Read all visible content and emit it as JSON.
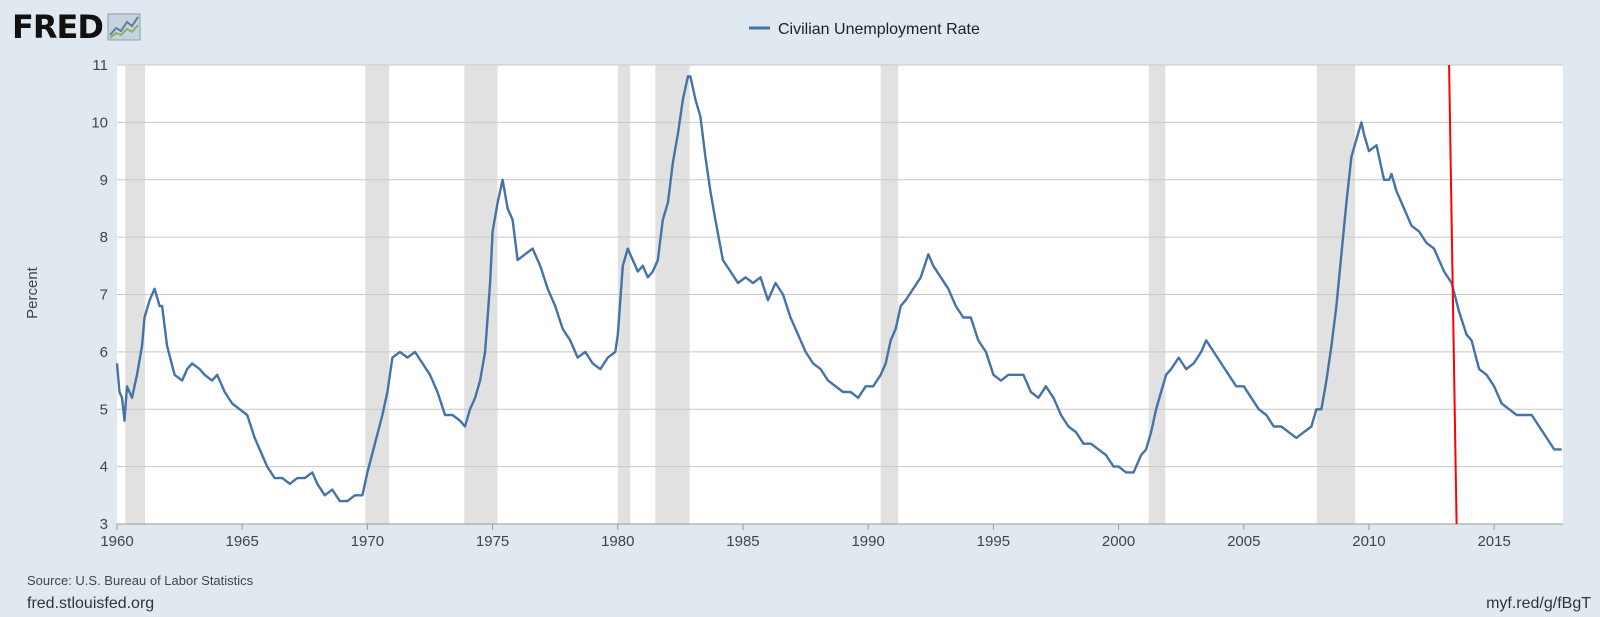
{
  "header": {
    "logo_text": "FRED",
    "logo_icon": "fred-chart-icon"
  },
  "footer": {
    "source": "Source: U.S. Bureau of Labor Statistics",
    "site": "fred.stlouisfed.org",
    "short_url": "myf.red/g/fBgT"
  },
  "colors": {
    "series": "#4572a7",
    "recession": "#e1e1e1",
    "annotation": "#ff0000",
    "background": "#e1e9f0",
    "plot": "#ffffff",
    "grid": "#c8c8c8"
  },
  "chart_data": {
    "type": "line",
    "title": "",
    "xlabel": "",
    "ylabel": "Percent",
    "xlim": [
      1960.0,
      2017.75
    ],
    "ylim": [
      3,
      11
    ],
    "yticks": [
      3,
      4,
      5,
      6,
      7,
      8,
      9,
      10,
      11
    ],
    "xticks": [
      1960,
      1965,
      1970,
      1975,
      1980,
      1985,
      1990,
      1995,
      2000,
      2005,
      2010,
      2015
    ],
    "grid": "horizontal",
    "legend": "top-center",
    "series": [
      {
        "name": "Civilian Unemployment Rate",
        "x": [
          1960.0,
          1960.1,
          1960.2,
          1960.3,
          1960.4,
          1960.6,
          1960.8,
          1961.0,
          1961.1,
          1961.3,
          1961.5,
          1961.7,
          1961.8,
          1962.0,
          1962.3,
          1962.6,
          1962.8,
          1963.0,
          1963.3,
          1963.5,
          1963.8,
          1964.0,
          1964.3,
          1964.6,
          1964.9,
          1965.2,
          1965.5,
          1965.8,
          1966.0,
          1966.3,
          1966.6,
          1966.9,
          1967.2,
          1967.5,
          1967.8,
          1968.0,
          1968.3,
          1968.6,
          1968.9,
          1969.2,
          1969.5,
          1969.8,
          1970.0,
          1970.3,
          1970.6,
          1970.8,
          1971.0,
          1971.3,
          1971.6,
          1971.9,
          1972.2,
          1972.5,
          1972.8,
          1973.1,
          1973.4,
          1973.7,
          1973.9,
          1974.1,
          1974.3,
          1974.5,
          1974.7,
          1974.9,
          1975.0,
          1975.2,
          1975.4,
          1975.6,
          1975.8,
          1976.0,
          1976.3,
          1976.6,
          1976.9,
          1977.2,
          1977.5,
          1977.8,
          1978.1,
          1978.4,
          1978.7,
          1979.0,
          1979.3,
          1979.6,
          1979.9,
          1980.0,
          1980.2,
          1980.4,
          1980.6,
          1980.8,
          1981.0,
          1981.2,
          1981.4,
          1981.6,
          1981.8,
          1982.0,
          1982.2,
          1982.4,
          1982.6,
          1982.8,
          1982.9,
          1983.1,
          1983.3,
          1983.5,
          1983.7,
          1983.9,
          1984.2,
          1984.5,
          1984.8,
          1985.1,
          1985.4,
          1985.7,
          1986.0,
          1986.3,
          1986.6,
          1986.9,
          1987.2,
          1987.5,
          1987.8,
          1988.1,
          1988.4,
          1988.7,
          1989.0,
          1989.3,
          1989.6,
          1989.9,
          1990.2,
          1990.5,
          1990.7,
          1990.9,
          1991.1,
          1991.3,
          1991.5,
          1991.8,
          1992.1,
          1992.4,
          1992.6,
          1992.9,
          1993.2,
          1993.5,
          1993.8,
          1994.1,
          1994.4,
          1994.7,
          1995.0,
          1995.3,
          1995.6,
          1995.9,
          1996.2,
          1996.5,
          1996.8,
          1997.1,
          1997.4,
          1997.7,
          1998.0,
          1998.3,
          1998.6,
          1998.9,
          1999.2,
          1999.5,
          1999.8,
          2000.0,
          2000.3,
          2000.6,
          2000.9,
          2001.1,
          2001.3,
          2001.5,
          2001.7,
          2001.9,
          2002.1,
          2002.4,
          2002.7,
          2003.0,
          2003.3,
          2003.5,
          2003.8,
          2004.1,
          2004.4,
          2004.7,
          2005.0,
          2005.3,
          2005.6,
          2005.9,
          2006.2,
          2006.5,
          2006.8,
          2007.1,
          2007.4,
          2007.7,
          2007.9,
          2008.1,
          2008.3,
          2008.5,
          2008.7,
          2008.9,
          2009.1,
          2009.3,
          2009.5,
          2009.7,
          2009.8,
          2010.0,
          2010.3,
          2010.6,
          2010.8,
          2010.9,
          2011.1,
          2011.4,
          2011.7,
          2012.0,
          2012.3,
          2012.6,
          2012.9,
          2013.0,
          2013.3,
          2013.6,
          2013.9,
          2014.1,
          2014.4,
          2014.7,
          2015.0,
          2015.3,
          2015.6,
          2015.9,
          2016.2,
          2016.5,
          2016.8,
          2017.1,
          2017.4,
          2017.7
        ],
        "values": [
          5.8,
          5.3,
          5.2,
          4.8,
          5.4,
          5.2,
          5.6,
          6.1,
          6.6,
          6.9,
          7.1,
          6.8,
          6.8,
          6.1,
          5.6,
          5.5,
          5.7,
          5.8,
          5.7,
          5.6,
          5.5,
          5.6,
          5.3,
          5.1,
          5.0,
          4.9,
          4.5,
          4.2,
          4.0,
          3.8,
          3.8,
          3.7,
          3.8,
          3.8,
          3.9,
          3.7,
          3.5,
          3.6,
          3.4,
          3.4,
          3.5,
          3.5,
          3.9,
          4.4,
          4.9,
          5.3,
          5.9,
          6.0,
          5.9,
          6.0,
          5.8,
          5.6,
          5.3,
          4.9,
          4.9,
          4.8,
          4.7,
          5.0,
          5.2,
          5.5,
          6.0,
          7.2,
          8.1,
          8.6,
          9.0,
          8.5,
          8.3,
          7.6,
          7.7,
          7.8,
          7.5,
          7.1,
          6.8,
          6.4,
          6.2,
          5.9,
          6.0,
          5.8,
          5.7,
          5.9,
          6.0,
          6.3,
          7.5,
          7.8,
          7.6,
          7.4,
          7.5,
          7.3,
          7.4,
          7.6,
          8.3,
          8.6,
          9.3,
          9.8,
          10.4,
          10.8,
          10.8,
          10.4,
          10.1,
          9.4,
          8.8,
          8.3,
          7.6,
          7.4,
          7.2,
          7.3,
          7.2,
          7.3,
          6.9,
          7.2,
          7.0,
          6.6,
          6.3,
          6.0,
          5.8,
          5.7,
          5.5,
          5.4,
          5.3,
          5.3,
          5.2,
          5.4,
          5.4,
          5.6,
          5.8,
          6.2,
          6.4,
          6.8,
          6.9,
          7.1,
          7.3,
          7.7,
          7.5,
          7.3,
          7.1,
          6.8,
          6.6,
          6.6,
          6.2,
          6.0,
          5.6,
          5.5,
          5.6,
          5.6,
          5.6,
          5.3,
          5.2,
          5.4,
          5.2,
          4.9,
          4.7,
          4.6,
          4.4,
          4.4,
          4.3,
          4.2,
          4.0,
          4.0,
          3.9,
          3.9,
          4.2,
          4.3,
          4.6,
          5.0,
          5.3,
          5.6,
          5.7,
          5.9,
          5.7,
          5.8,
          6.0,
          6.2,
          6.0,
          5.8,
          5.6,
          5.4,
          5.4,
          5.2,
          5.0,
          4.9,
          4.7,
          4.7,
          4.6,
          4.5,
          4.6,
          4.7,
          5.0,
          5.0,
          5.5,
          6.1,
          6.8,
          7.7,
          8.6,
          9.4,
          9.7,
          10.0,
          9.8,
          9.5,
          9.6,
          9.0,
          9.0,
          9.1,
          8.8,
          8.5,
          8.2,
          8.1,
          7.9,
          7.8,
          7.5,
          7.4,
          7.2,
          6.7,
          6.3,
          6.2,
          5.7,
          5.6,
          5.4,
          5.1,
          5.0,
          4.9,
          4.9,
          4.9,
          4.7,
          4.5,
          4.3,
          4.3
        ]
      }
    ],
    "recessions": [
      [
        1960.33,
        1961.12
      ],
      [
        1969.92,
        1970.87
      ],
      [
        1973.87,
        1975.2
      ],
      [
        1980.0,
        1980.5
      ],
      [
        1981.5,
        1982.87
      ],
      [
        1990.5,
        1991.2
      ],
      [
        2001.2,
        2001.87
      ],
      [
        2007.92,
        2009.45
      ]
    ],
    "annotation_line": {
      "from": [
        2013.2,
        11.0
      ],
      "to": [
        2013.5,
        3.0
      ]
    }
  }
}
